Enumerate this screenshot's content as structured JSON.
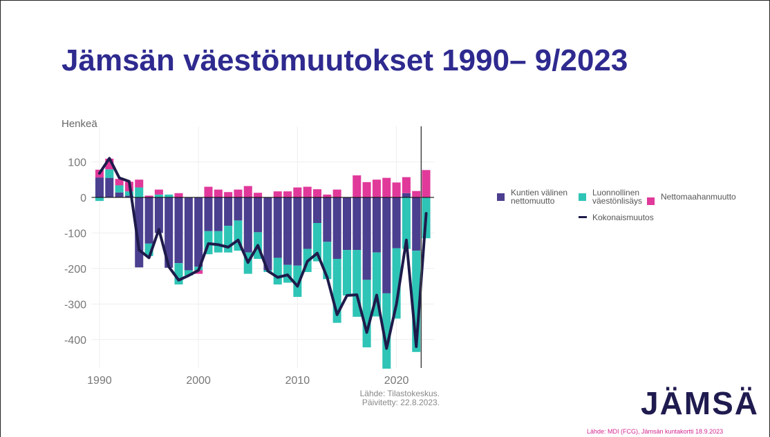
{
  "chart_data": {
    "type": "bar",
    "title": "Jämsän väestömuutokset 1990– 9/2023",
    "y_label": "Henkeä",
    "x": [
      1990,
      1991,
      1992,
      1993,
      1994,
      1995,
      1996,
      1997,
      1998,
      1999,
      2000,
      2001,
      2002,
      2003,
      2004,
      2005,
      2006,
      2007,
      2008,
      2009,
      2010,
      2011,
      2012,
      2013,
      2014,
      2015,
      2016,
      2017,
      2018,
      2019,
      2020,
      2021,
      2022,
      2023
    ],
    "series": [
      {
        "name": "Kuntien välinen nettomuutto",
        "type": "bar",
        "color": "#4b3f8f",
        "values": [
          56,
          55,
          14,
          5,
          -197,
          -130,
          -100,
          -198,
          -185,
          -205,
          -195,
          -95,
          -95,
          -80,
          -65,
          -155,
          -98,
          -205,
          -170,
          -190,
          -192,
          -145,
          -72,
          -125,
          -173,
          -148,
          -148,
          -232,
          -155,
          -270,
          -143,
          12,
          -150,
          0
        ]
      },
      {
        "name": "Luonnollinen väestönlisäys",
        "type": "bar",
        "color": "#2ec4b6",
        "values": [
          -10,
          24,
          20,
          12,
          28,
          -35,
          8,
          8,
          -60,
          -15,
          -10,
          -65,
          -60,
          -75,
          -85,
          -60,
          -75,
          -5,
          -75,
          -50,
          -88,
          -65,
          -108,
          -105,
          -180,
          -128,
          -188,
          -190,
          -180,
          -212,
          -198,
          -145,
          -285,
          -115
        ]
      },
      {
        "name": "Nettomaahanmuutto",
        "type": "bar",
        "color": "#e0399a",
        "values": [
          22,
          30,
          18,
          27,
          22,
          5,
          14,
          0,
          12,
          0,
          -10,
          30,
          22,
          15,
          22,
          32,
          13,
          0,
          17,
          17,
          28,
          30,
          23,
          8,
          22,
          0,
          62,
          43,
          50,
          55,
          42,
          45,
          18,
          77
        ]
      },
      {
        "name": "Kokonaismuutos",
        "type": "line",
        "color": "#1e1b4b",
        "values": [
          68,
          110,
          55,
          45,
          -148,
          -170,
          -90,
          -195,
          -233,
          -220,
          -205,
          -130,
          -133,
          -140,
          -120,
          -183,
          -135,
          -207,
          -225,
          -218,
          -250,
          -180,
          -157,
          -225,
          -330,
          -276,
          -274,
          -380,
          -275,
          -425,
          -300,
          -120,
          -420,
          -45
        ]
      }
    ],
    "xlim": [
      1989.2,
      2023.8
    ],
    "xticks": [
      1990,
      2000,
      2010,
      2020
    ],
    "ylim": [
      -480,
      200
    ],
    "yticks": [
      100,
      0,
      -100,
      -200,
      -300,
      -400
    ],
    "vline_x": 2022.5,
    "grid": true,
    "source": [
      "Lähde: Tilastokeskus.",
      "Päivitetty: 22.8.2023."
    ]
  },
  "logo": "JÄMSÄ",
  "footer": "Lähde: MDI (FCG), Jämsän kuntakortti 18.9.2023"
}
